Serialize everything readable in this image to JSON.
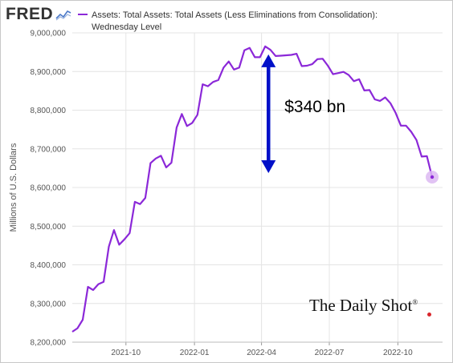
{
  "header": {
    "logo_text": "FRED",
    "logo_icon": "line-chart-icon",
    "legend_line1": "Assets: Total Assets: Total Assets (Less Eliminations from Consolidation):",
    "legend_line2": "Wednesday Level"
  },
  "colors": {
    "series": "#8b28d8",
    "endpoint_halo": "#dcb8f2",
    "arrow": "#0010c8",
    "grid": "#e4e4e4"
  },
  "annotation": {
    "text": "$340 bn"
  },
  "watermark": {
    "text": "The Daily Shot",
    "mark": "®"
  },
  "chart_data": {
    "type": "line",
    "title": "",
    "xlabel": "",
    "ylabel": "Millions of U.S. Dollars",
    "ylim": [
      8200000,
      9000000
    ],
    "xlim": [
      "2021-07-21",
      "2022-11-30"
    ],
    "x_ticks": [
      {
        "date": "2021-10-01",
        "label": "2021-10"
      },
      {
        "date": "2022-01-01",
        "label": "2022-01"
      },
      {
        "date": "2022-04-01",
        "label": "2022-04"
      },
      {
        "date": "2022-07-01",
        "label": "2022-07"
      },
      {
        "date": "2022-10-01",
        "label": "2022-10"
      }
    ],
    "y_ticks": [
      8200000,
      8300000,
      8400000,
      8500000,
      8600000,
      8700000,
      8800000,
      8900000,
      9000000
    ],
    "y_tick_labels": [
      "8,200,000",
      "8,300,000",
      "8,400,000",
      "8,500,000",
      "8,600,000",
      "8,700,000",
      "8,800,000",
      "8,900,000",
      "9,000,000"
    ],
    "grid": true,
    "legend": "top-left",
    "series": [
      {
        "name": "Assets: Total Assets: Total Assets (Less Eliminations from Consolidation): Wednesday Level",
        "points": [
          [
            "2021-07-21",
            8227000
          ],
          [
            "2021-07-28",
            8236000
          ],
          [
            "2021-08-04",
            8258000
          ],
          [
            "2021-08-11",
            8343000
          ],
          [
            "2021-08-18",
            8335000
          ],
          [
            "2021-08-25",
            8350000
          ],
          [
            "2021-09-01",
            8356000
          ],
          [
            "2021-09-08",
            8447000
          ],
          [
            "2021-09-15",
            8490000
          ],
          [
            "2021-09-22",
            8452000
          ],
          [
            "2021-09-29",
            8466000
          ],
          [
            "2021-10-06",
            8482000
          ],
          [
            "2021-10-13",
            8563000
          ],
          [
            "2021-10-20",
            8557000
          ],
          [
            "2021-10-27",
            8573000
          ],
          [
            "2021-11-03",
            8663000
          ],
          [
            "2021-11-10",
            8675000
          ],
          [
            "2021-11-17",
            8682000
          ],
          [
            "2021-11-24",
            8652000
          ],
          [
            "2021-12-01",
            8664000
          ],
          [
            "2021-12-08",
            8755000
          ],
          [
            "2021-12-15",
            8790000
          ],
          [
            "2021-12-22",
            8759000
          ],
          [
            "2021-12-29",
            8767000
          ],
          [
            "2022-01-05",
            8788000
          ],
          [
            "2022-01-12",
            8867000
          ],
          [
            "2022-01-19",
            8862000
          ],
          [
            "2022-01-26",
            8873000
          ],
          [
            "2022-02-02",
            8878000
          ],
          [
            "2022-02-09",
            8910000
          ],
          [
            "2022-02-16",
            8926000
          ],
          [
            "2022-02-23",
            8905000
          ],
          [
            "2022-03-02",
            8910000
          ],
          [
            "2022-03-09",
            8955000
          ],
          [
            "2022-03-16",
            8961000
          ],
          [
            "2022-03-23",
            8937000
          ],
          [
            "2022-03-30",
            8937000
          ],
          [
            "2022-04-06",
            8965000
          ],
          [
            "2022-04-13",
            8956000
          ],
          [
            "2022-04-20",
            8940000
          ],
          [
            "2022-04-27",
            8941000
          ],
          [
            "2022-05-04",
            8942000
          ],
          [
            "2022-05-11",
            8943000
          ],
          [
            "2022-05-18",
            8946000
          ],
          [
            "2022-05-25",
            8914000
          ],
          [
            "2022-06-01",
            8915000
          ],
          [
            "2022-06-08",
            8919000
          ],
          [
            "2022-06-15",
            8932000
          ],
          [
            "2022-06-22",
            8933000
          ],
          [
            "2022-06-29",
            8915000
          ],
          [
            "2022-07-06",
            8893000
          ],
          [
            "2022-07-13",
            8896000
          ],
          [
            "2022-07-20",
            8899000
          ],
          [
            "2022-07-27",
            8891000
          ],
          [
            "2022-08-03",
            8875000
          ],
          [
            "2022-08-10",
            8880000
          ],
          [
            "2022-08-17",
            8851000
          ],
          [
            "2022-08-24",
            8852000
          ],
          [
            "2022-08-31",
            8828000
          ],
          [
            "2022-09-07",
            8824000
          ],
          [
            "2022-09-14",
            8833000
          ],
          [
            "2022-09-21",
            8818000
          ],
          [
            "2022-09-28",
            8793000
          ],
          [
            "2022-10-05",
            8760000
          ],
          [
            "2022-10-12",
            8760000
          ],
          [
            "2022-10-19",
            8744000
          ],
          [
            "2022-10-26",
            8723000
          ],
          [
            "2022-11-02",
            8680000
          ],
          [
            "2022-11-09",
            8681000
          ],
          [
            "2022-11-16",
            8627000
          ]
        ]
      }
    ],
    "annotation_arrow": {
      "x": "2022-04-06",
      "y_top": 8965000,
      "y_bottom": 8625000,
      "label": "$340 bn"
    }
  }
}
